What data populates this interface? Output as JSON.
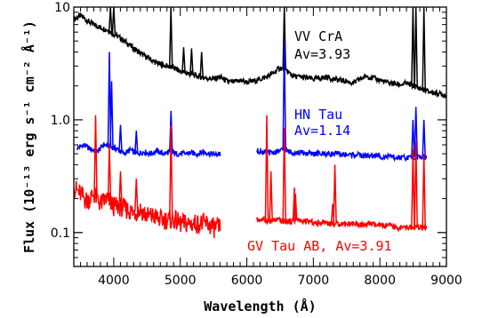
{
  "chart_data": {
    "type": "line",
    "title": "",
    "xlabel": "Wavelength (Å)",
    "ylabel": "Flux (10⁻¹³ erg s⁻¹ cm⁻² Å⁻¹)",
    "xlim": [
      3400,
      9000
    ],
    "ylim": [
      0.05,
      10
    ],
    "yscale": "log",
    "grid": false,
    "xticks": [
      4000,
      5000,
      6000,
      7000,
      8000,
      9000
    ],
    "xtick_labels": [
      "4000",
      "5000",
      "6000",
      "7000",
      "8000",
      "9000"
    ],
    "yticks": [
      0.1,
      1.0,
      10
    ],
    "ytick_labels": [
      "0.1",
      "1.0",
      "10"
    ],
    "series": [
      {
        "name": "VV CrA",
        "color": "#000000",
        "annotation_lines": [
          "VV CrA",
          "Av=3.93"
        ],
        "segments": [
          [
            [
              3400,
              7.8
            ],
            [
              3500,
              8.4
            ],
            [
              3600,
              7.6
            ],
            [
              3700,
              7.0
            ],
            [
              3800,
              6.6
            ],
            [
              3900,
              6.3
            ],
            [
              4000,
              5.8
            ],
            [
              4100,
              5.3
            ],
            [
              4200,
              4.8
            ],
            [
              4300,
              4.3
            ],
            [
              4400,
              3.9
            ],
            [
              4500,
              3.6
            ],
            [
              4600,
              3.3
            ],
            [
              4700,
              3.1
            ],
            [
              4800,
              3.0
            ],
            [
              4900,
              2.9
            ],
            [
              5000,
              2.7
            ],
            [
              5100,
              2.6
            ],
            [
              5200,
              2.5
            ],
            [
              5300,
              2.4
            ],
            [
              5400,
              2.35
            ],
            [
              5500,
              2.3
            ],
            [
              5600,
              2.4
            ],
            [
              5700,
              2.2
            ],
            [
              5800,
              2.15
            ],
            [
              5900,
              2.25
            ],
            [
              6000,
              2.15
            ],
            [
              6100,
              2.2
            ],
            [
              6200,
              2.3
            ],
            [
              6300,
              2.4
            ],
            [
              6400,
              2.6
            ],
            [
              6500,
              2.9
            ],
            [
              6600,
              2.7
            ],
            [
              6700,
              2.45
            ],
            [
              6800,
              2.4
            ],
            [
              6900,
              2.35
            ],
            [
              7000,
              2.3
            ],
            [
              7100,
              2.35
            ],
            [
              7200,
              2.4
            ],
            [
              7300,
              2.3
            ],
            [
              7400,
              2.25
            ],
            [
              7500,
              2.2
            ],
            [
              7600,
              2.1
            ],
            [
              7700,
              2.3
            ],
            [
              7800,
              2.45
            ],
            [
              7900,
              2.35
            ],
            [
              8000,
              2.25
            ],
            [
              8100,
              2.15
            ],
            [
              8200,
              2.1
            ],
            [
              8300,
              2.05
            ],
            [
              8400,
              2.1
            ],
            [
              8500,
              2.0
            ],
            [
              8600,
              1.9
            ],
            [
              8700,
              1.8
            ],
            [
              8800,
              1.75
            ],
            [
              8900,
              1.7
            ],
            [
              9000,
              1.65
            ]
          ]
        ]
      },
      {
        "name": "HN Tau",
        "color": "#0000ff",
        "annotation_lines": [
          "HN Tau",
          "Av=1.14"
        ],
        "segments": [
          [
            [
              3450,
              0.56
            ],
            [
              3550,
              0.6
            ],
            [
              3650,
              0.55
            ],
            [
              3750,
              0.52
            ],
            [
              3850,
              0.6
            ],
            [
              3950,
              0.58
            ],
            [
              4050,
              0.55
            ],
            [
              4150,
              0.5
            ],
            [
              4250,
              0.54
            ],
            [
              4350,
              0.5
            ],
            [
              4450,
              0.52
            ],
            [
              4550,
              0.5
            ],
            [
              4650,
              0.53
            ],
            [
              4750,
              0.5
            ],
            [
              4850,
              0.52
            ],
            [
              4950,
              0.5
            ],
            [
              5050,
              0.5
            ],
            [
              5150,
              0.51
            ],
            [
              5250,
              0.5
            ],
            [
              5350,
              0.52
            ],
            [
              5450,
              0.5
            ],
            [
              5550,
              0.49
            ],
            [
              5600,
              0.5
            ]
          ],
          [
            [
              6150,
              0.53
            ],
            [
              6250,
              0.52
            ],
            [
              6350,
              0.51
            ],
            [
              6450,
              0.52
            ],
            [
              6550,
              0.54
            ],
            [
              6650,
              0.52
            ],
            [
              6750,
              0.51
            ],
            [
              6850,
              0.51
            ],
            [
              6950,
              0.5
            ],
            [
              7050,
              0.5
            ],
            [
              7150,
              0.5
            ],
            [
              7250,
              0.5
            ],
            [
              7350,
              0.5
            ],
            [
              7450,
              0.49
            ],
            [
              7550,
              0.49
            ],
            [
              7650,
              0.49
            ],
            [
              7750,
              0.48
            ],
            [
              7850,
              0.48
            ],
            [
              7950,
              0.48
            ],
            [
              8050,
              0.47
            ],
            [
              8150,
              0.47
            ],
            [
              8250,
              0.46
            ],
            [
              8350,
              0.46
            ],
            [
              8450,
              0.46
            ],
            [
              8550,
              0.47
            ],
            [
              8650,
              0.46
            ],
            [
              8700,
              0.46
            ]
          ]
        ]
      },
      {
        "name": "GV Tau AB",
        "color": "#ff0000",
        "annotation_lines": [
          "GV Tau AB, Av=3.91"
        ],
        "segments": [
          [
            [
              3400,
              0.25
            ],
            [
              3500,
              0.22
            ],
            [
              3600,
              0.19
            ],
            [
              3700,
              0.22
            ],
            [
              3800,
              0.18
            ],
            [
              3900,
              0.2
            ],
            [
              4000,
              0.17
            ],
            [
              4100,
              0.17
            ],
            [
              4200,
              0.16
            ],
            [
              4300,
              0.15
            ],
            [
              4400,
              0.16
            ],
            [
              4500,
              0.14
            ],
            [
              4600,
              0.14
            ],
            [
              4700,
              0.13
            ],
            [
              4800,
              0.13
            ],
            [
              4900,
              0.13
            ],
            [
              5000,
              0.12
            ],
            [
              5100,
              0.12
            ],
            [
              5200,
              0.12
            ],
            [
              5300,
              0.12
            ],
            [
              5400,
              0.12
            ],
            [
              5500,
              0.11
            ],
            [
              5600,
              0.11
            ]
          ],
          [
            [
              6150,
              0.13
            ],
            [
              6250,
              0.13
            ],
            [
              6350,
              0.125
            ],
            [
              6450,
              0.13
            ],
            [
              6550,
              0.125
            ],
            [
              6650,
              0.125
            ],
            [
              6750,
              0.13
            ],
            [
              6850,
              0.125
            ],
            [
              6950,
              0.125
            ],
            [
              7050,
              0.12
            ],
            [
              7150,
              0.125
            ],
            [
              7250,
              0.12
            ],
            [
              7350,
              0.12
            ],
            [
              7450,
              0.12
            ],
            [
              7550,
              0.12
            ],
            [
              7650,
              0.12
            ],
            [
              7750,
              0.115
            ],
            [
              7850,
              0.12
            ],
            [
              7950,
              0.115
            ],
            [
              8050,
              0.115
            ],
            [
              8150,
              0.115
            ],
            [
              8250,
              0.11
            ],
            [
              8350,
              0.11
            ],
            [
              8450,
              0.11
            ],
            [
              8550,
              0.11
            ],
            [
              8650,
              0.11
            ],
            [
              8700,
              0.11
            ]
          ]
        ]
      }
    ],
    "emission_lines": [
      {
        "series": "VV CrA",
        "x": 3950,
        "peak": 10
      },
      {
        "series": "VV CrA",
        "x": 4000,
        "peak": 10
      },
      {
        "series": "VV CrA",
        "x": 4860,
        "peak": 10
      },
      {
        "series": "VV CrA",
        "x": 5050,
        "peak": 4.4
      },
      {
        "series": "VV CrA",
        "x": 5170,
        "peak": 4.3
      },
      {
        "series": "VV CrA",
        "x": 5320,
        "peak": 4.0
      },
      {
        "series": "VV CrA",
        "x": 6563,
        "peak": 10
      },
      {
        "series": "VV CrA",
        "x": 8498,
        "peak": 10
      },
      {
        "series": "VV CrA",
        "x": 8542,
        "peak": 10
      },
      {
        "series": "VV CrA",
        "x": 8662,
        "peak": 10
      },
      {
        "series": "HN Tau",
        "x": 3934,
        "peak": 4.0
      },
      {
        "series": "HN Tau",
        "x": 3968,
        "peak": 2.2
      },
      {
        "series": "HN Tau",
        "x": 4102,
        "peak": 0.9
      },
      {
        "series": "HN Tau",
        "x": 4340,
        "peak": 0.8
      },
      {
        "series": "HN Tau",
        "x": 4861,
        "peak": 1.2
      },
      {
        "series": "HN Tau",
        "x": 6563,
        "peak": 5.0
      },
      {
        "series": "HN Tau",
        "x": 8498,
        "peak": 1.0
      },
      {
        "series": "HN Tau",
        "x": 8542,
        "peak": 1.3
      },
      {
        "series": "HN Tau",
        "x": 8662,
        "peak": 1.0
      },
      {
        "series": "GV Tau AB",
        "x": 3727,
        "peak": 1.1
      },
      {
        "series": "GV Tau AB",
        "x": 3934,
        "peak": 0.6
      },
      {
        "series": "GV Tau AB",
        "x": 4102,
        "peak": 0.35
      },
      {
        "series": "GV Tau AB",
        "x": 4340,
        "peak": 0.3
      },
      {
        "series": "GV Tau AB",
        "x": 4861,
        "peak": 0.9
      },
      {
        "series": "GV Tau AB",
        "x": 6300,
        "peak": 1.1
      },
      {
        "series": "GV Tau AB",
        "x": 6363,
        "peak": 0.35
      },
      {
        "series": "GV Tau AB",
        "x": 6563,
        "peak": 0.85
      },
      {
        "series": "GV Tau AB",
        "x": 6716,
        "peak": 0.25
      },
      {
        "series": "GV Tau AB",
        "x": 6731,
        "peak": 0.22
      },
      {
        "series": "GV Tau AB",
        "x": 7291,
        "peak": 0.18
      },
      {
        "series": "GV Tau AB",
        "x": 7324,
        "peak": 0.4
      },
      {
        "series": "GV Tau AB",
        "x": 8498,
        "peak": 0.55
      },
      {
        "series": "GV Tau AB",
        "x": 8542,
        "peak": 0.65
      },
      {
        "series": "GV Tau AB",
        "x": 8662,
        "peak": 0.5
      }
    ]
  }
}
